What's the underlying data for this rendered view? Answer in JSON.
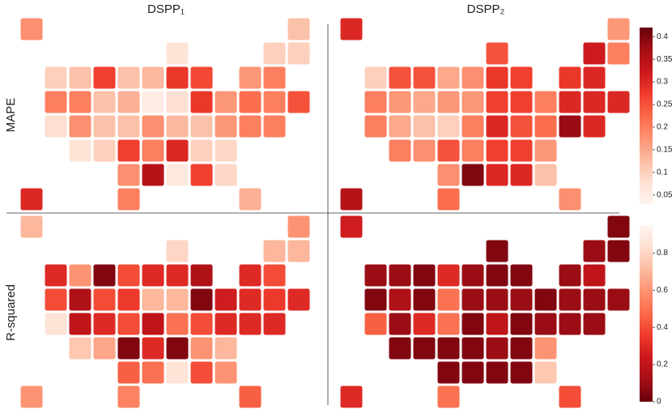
{
  "chart_data": {
    "type": "choropleth",
    "columns": [
      "DSPP₁",
      "DSPP₂"
    ],
    "rows": [
      {
        "label": "MAPE",
        "zlim": [
          0.03,
          0.42
        ],
        "zticks": [
          0.05,
          0.1,
          0.15,
          0.2,
          0.25,
          0.3,
          0.35,
          0.4
        ],
        "colors": [
          "#fff5f0",
          "#fee0d2",
          "#fcbba1",
          "#fc9272",
          "#fb6a4a",
          "#ef3b2c",
          "#cb181d",
          "#a50f15",
          "#67000d"
        ],
        "panels": [
          {
            "values": [
              0.18,
              0.12,
              0.07,
              0.1,
              0.1,
              0.1,
              0.12,
              0.27,
              0.12,
              0.13,
              0.28,
              0.26,
              0.17,
              0.2,
              0.2,
              0.2,
              0.12,
              0.14,
              0.05,
              0.08,
              0.28,
              0.17,
              0.22,
              0.2,
              0.25,
              0.08,
              0.18,
              0.12,
              0.12,
              0.18,
              0.13,
              0.12,
              0.17,
              0.2,
              0.2,
              0.07,
              0.1,
              0.27,
              0.2,
              0.3,
              0.1,
              0.09,
              0.18,
              0.35,
              0.06,
              0.27,
              0.09,
              0.3,
              0.2,
              0.14
            ]
          },
          {
            "values": [
              0.3,
              0.17,
              0.25,
              0.32,
              0.2,
              0.1,
              0.25,
              0.25,
              0.15,
              0.18,
              0.28,
              0.27,
              0.28,
              0.3,
              0.2,
              0.17,
              0.15,
              0.17,
              0.17,
              0.27,
              0.27,
              0.2,
              0.3,
              0.3,
              0.3,
              0.2,
              0.15,
              0.12,
              0.1,
              0.2,
              0.3,
              0.25,
              0.22,
              0.38,
              0.3,
              0.2,
              0.18,
              0.25,
              0.2,
              0.27,
              0.27,
              0.17,
              0.18,
              0.4,
              0.3,
              0.3,
              0.12,
              0.35,
              0.22,
              0.18
            ]
          }
        ]
      },
      {
        "label": "R-squared",
        "zlim": [
          0,
          0.95
        ],
        "zticks": [
          0,
          0.2,
          0.4,
          0.6,
          0.8
        ],
        "colors": [
          "#67000d",
          "#a50f15",
          "#cb181d",
          "#ef3b2c",
          "#fb6a4a",
          "#fc9272",
          "#fcbba1",
          "#fee0d2",
          "#fff5f0"
        ],
        "panels": [
          {
            "values": [
              0.7,
              0.6,
              0.8,
              0.7,
              0.7,
              0.3,
              0.6,
              0.05,
              0.4,
              0.3,
              0.3,
              0.15,
              0.3,
              0.4,
              0.4,
              0.15,
              0.4,
              0.35,
              0.7,
              0.7,
              0.05,
              0.25,
              0.3,
              0.35,
              0.3,
              0.85,
              0.2,
              0.3,
              0.4,
              0.2,
              0.5,
              0.4,
              0.3,
              0.3,
              0.3,
              0.75,
              0.65,
              0.05,
              0.3,
              0.05,
              0.6,
              0.7,
              0.45,
              0.5,
              0.85,
              0.4,
              0.6,
              0.6,
              0.55,
              0.45
            ]
          },
          {
            "values": [
              0.25,
              0.05,
              0.05,
              0.1,
              0.05,
              0.1,
              0.1,
              0.05,
              0.3,
              0.1,
              0.05,
              0.05,
              0.1,
              0.2,
              0.05,
              0.15,
              0.05,
              0.5,
              0.1,
              0.1,
              0.1,
              0.05,
              0.1,
              0.1,
              0.1,
              0.45,
              0.1,
              0.3,
              0.5,
              0.05,
              0.2,
              0.05,
              0.1,
              0.1,
              0.1,
              0.05,
              0.05,
              0.05,
              0.05,
              0.1,
              0.05,
              0.6,
              0.05,
              0.05,
              0.05,
              0.05,
              0.75,
              0.3,
              0.5,
              0.4
            ]
          }
        ]
      }
    ]
  }
}
